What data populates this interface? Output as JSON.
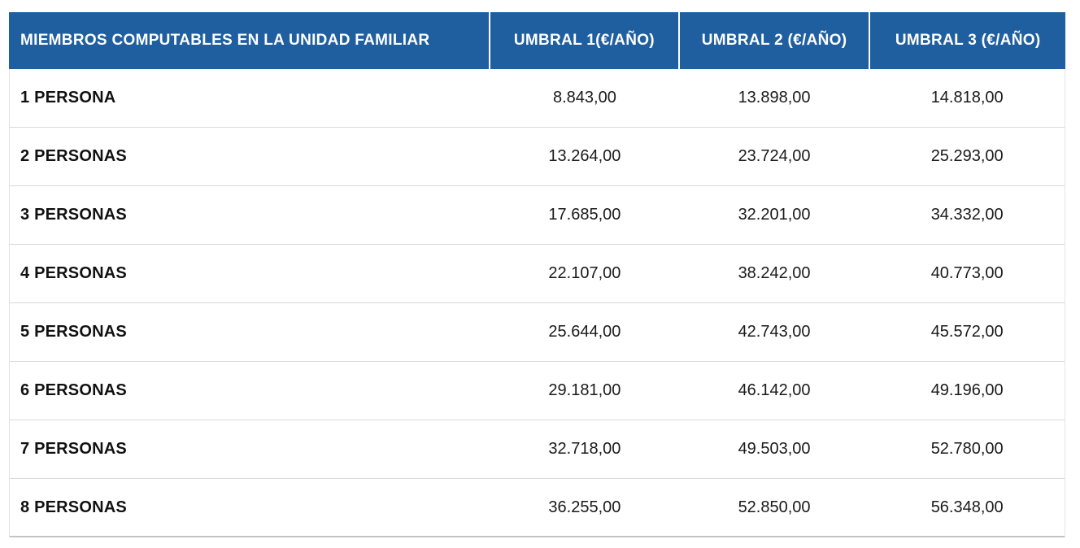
{
  "table": {
    "columns": [
      {
        "key": "label",
        "label": "MIEMBROS COMPUTABLES EN LA UNIDAD FAMILIAR"
      },
      {
        "key": "umbral1",
        "label": "UMBRAL 1(€/AÑO)"
      },
      {
        "key": "umbral2",
        "label": "UMBRAL 2 (€/AÑO)"
      },
      {
        "key": "umbral3",
        "label": "UMBRAL 3 (€/AÑO)"
      }
    ],
    "rows": [
      {
        "label": "1 PERSONA",
        "umbral1": "8.843,00",
        "umbral2": "13.898,00",
        "umbral3": "14.818,00"
      },
      {
        "label": "2 PERSONAS",
        "umbral1": "13.264,00",
        "umbral2": "23.724,00",
        "umbral3": "25.293,00"
      },
      {
        "label": "3 PERSONAS",
        "umbral1": "17.685,00",
        "umbral2": "32.201,00",
        "umbral3": "34.332,00"
      },
      {
        "label": "4 PERSONAS",
        "umbral1": "22.107,00",
        "umbral2": "38.242,00",
        "umbral3": "40.773,00"
      },
      {
        "label": "5 PERSONAS",
        "umbral1": "25.644,00",
        "umbral2": "42.743,00",
        "umbral3": "45.572,00"
      },
      {
        "label": "6 PERSONAS",
        "umbral1": "29.181,00",
        "umbral2": "46.142,00",
        "umbral3": "49.196,00"
      },
      {
        "label": "7 PERSONAS",
        "umbral1": "32.718,00",
        "umbral2": "49.503,00",
        "umbral3": "52.780,00"
      },
      {
        "label": "8 PERSONAS",
        "umbral1": "36.255,00",
        "umbral2": "52.850,00",
        "umbral3": "56.348,00"
      }
    ]
  },
  "colors": {
    "header_bg": "#205f9f",
    "header_text": "#ffffff",
    "row_divider": "#d9d9d9",
    "body_text": "#1a1a1a"
  }
}
